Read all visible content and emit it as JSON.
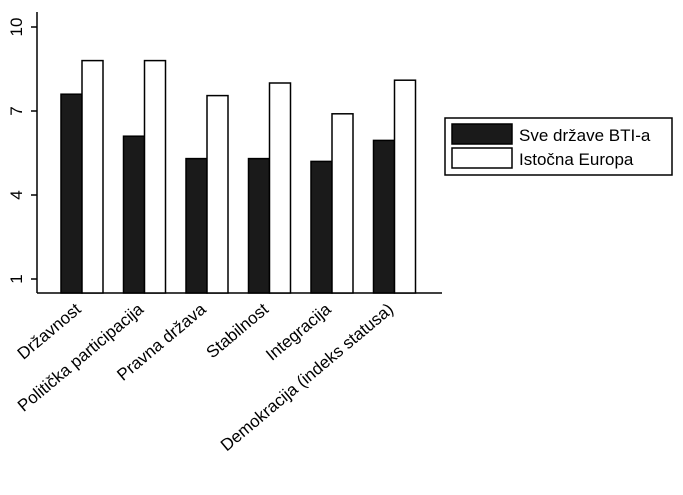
{
  "chart_data": {
    "type": "bar",
    "categories": [
      "Državnost",
      "Politička participacija",
      "Pravna država",
      "Stabilnost",
      "Integracija",
      "Demokracija (indeks statusa)"
    ],
    "series": [
      {
        "name": "Sve države BTI-a",
        "values": [
          7.6,
          6.1,
          5.3,
          5.3,
          5.2,
          5.95
        ],
        "color": "#1a1a1a"
      },
      {
        "name": "Istočna Europa",
        "values": [
          8.8,
          8.8,
          7.55,
          8.0,
          6.9,
          8.1
        ],
        "color": "#ffffff"
      }
    ],
    "yticks": [
      "1",
      "4",
      "7",
      "10"
    ],
    "ylim": [
      0.5,
      10.5
    ],
    "title": "",
    "xlabel": "",
    "ylabel": "",
    "grid": false,
    "legend_position": "right"
  }
}
